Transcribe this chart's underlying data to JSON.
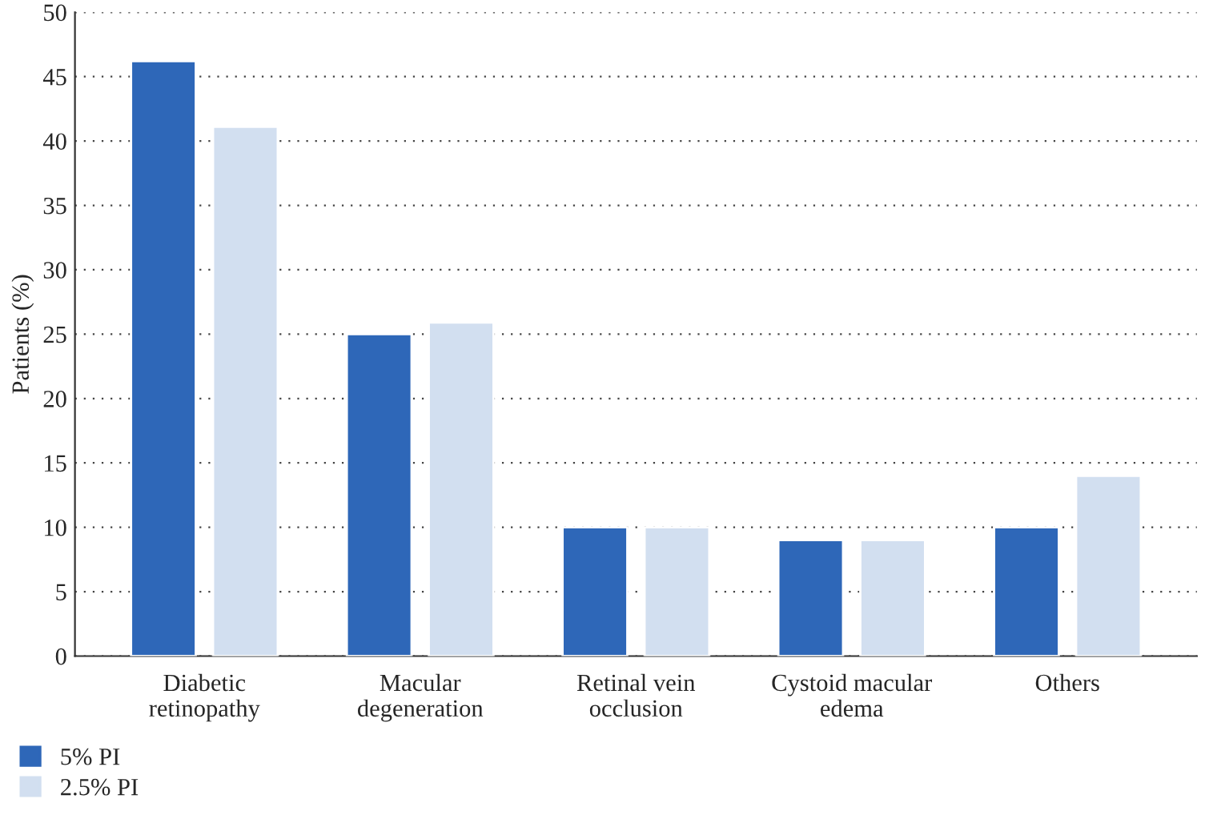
{
  "chart_data": {
    "type": "bar",
    "ylabel": "Patients (%)",
    "categories": [
      "Diabetic\nretinopathy",
      "Macular\ndegeneration",
      "Retinal vein\nocclusion",
      "Cystoid macular\nedema",
      "Others"
    ],
    "series": [
      {
        "name": "5% PI",
        "color": "#2e67b8",
        "values": [
          46.2,
          25,
          10,
          9,
          10
        ]
      },
      {
        "name": "2.5% PI",
        "color": "#d2dff0",
        "values": [
          41.1,
          25.9,
          10,
          9,
          14
        ]
      }
    ],
    "ylim": [
      0,
      50
    ],
    "yticks": [
      0,
      5,
      10,
      15,
      20,
      25,
      30,
      35,
      40,
      45,
      50
    ],
    "grid": "y",
    "legend": "bottom left"
  }
}
